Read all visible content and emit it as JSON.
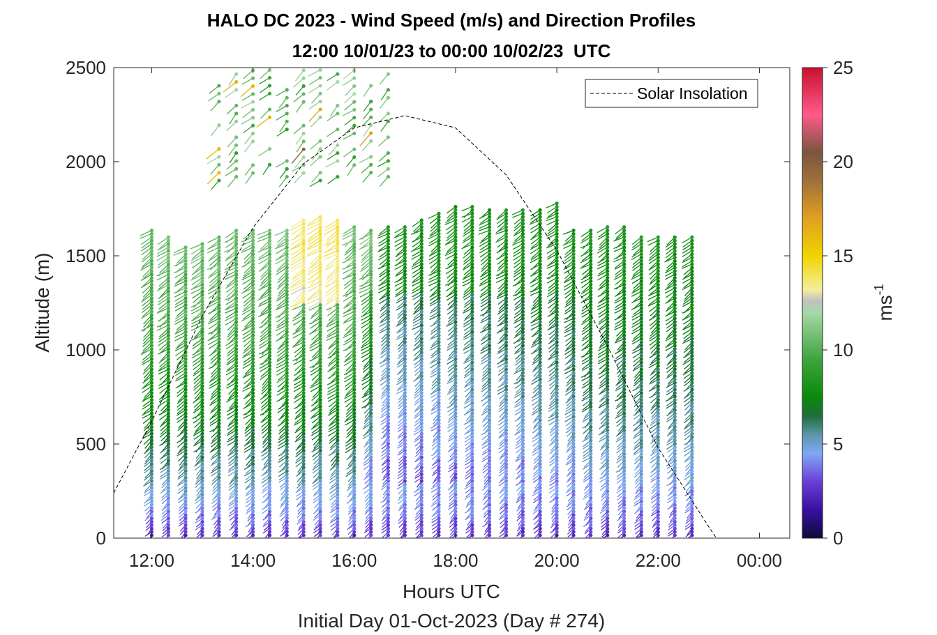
{
  "chart_data": {
    "type": "wind-barb-profile",
    "title": "HALO DC 2023 - Wind Speed (m/s) and Direction Profiles",
    "subtitle": "12:00 10/01/23 to 00:00 10/02/23  UTC",
    "xlabel": "Hours UTC",
    "xlabel2": "Initial Day 01-Oct-2023 (Day # 274)",
    "ylabel": "Altitude (m)",
    "xlim": [
      11.25,
      24.6
    ],
    "ylim": [
      0,
      2500
    ],
    "x_ticks": [
      {
        "value": 12,
        "label": "12:00"
      },
      {
        "value": 14,
        "label": "14:00"
      },
      {
        "value": 16,
        "label": "16:00"
      },
      {
        "value": 18,
        "label": "18:00"
      },
      {
        "value": 20,
        "label": "20:00"
      },
      {
        "value": 22,
        "label": "22:00"
      },
      {
        "value": 24,
        "label": "00:00"
      }
    ],
    "y_ticks": [
      0,
      500,
      1000,
      1500,
      2000,
      2500
    ],
    "colorbar": {
      "label": "ms",
      "label_exponent": "-1",
      "range": [
        0,
        25
      ],
      "ticks": [
        0,
        5,
        10,
        15,
        20,
        25
      ],
      "stops": [
        {
          "value": 0,
          "color": "#0b0b3a"
        },
        {
          "value": 1.5,
          "color": "#3a10a0"
        },
        {
          "value": 3,
          "color": "#6a3fd8"
        },
        {
          "value": 4.5,
          "color": "#7fa8f5"
        },
        {
          "value": 5.5,
          "color": "#5a96a8"
        },
        {
          "value": 6.5,
          "color": "#1e6e3c"
        },
        {
          "value": 7.5,
          "color": "#0a8a0a"
        },
        {
          "value": 9.5,
          "color": "#3fa33f"
        },
        {
          "value": 12,
          "color": "#a8d8a8"
        },
        {
          "value": 12.6,
          "color": "#c0c0c0"
        },
        {
          "value": 13.2,
          "color": "#f5ee9c"
        },
        {
          "value": 15,
          "color": "#f0d400"
        },
        {
          "value": 17,
          "color": "#e0a020"
        },
        {
          "value": 19,
          "color": "#a0703a"
        },
        {
          "value": 20.5,
          "color": "#7a5540"
        },
        {
          "value": 22.5,
          "color": "#ff5a8a"
        },
        {
          "value": 25,
          "color": "#c8102e"
        }
      ]
    },
    "legend": {
      "entries": [
        "Solar Insolation"
      ],
      "position": "top-right"
    },
    "solar_insolation": {
      "style": "dashed",
      "points": [
        [
          11.25,
          240
        ],
        [
          12.0,
          620
        ],
        [
          13.0,
          1180
        ],
        [
          14.0,
          1650
        ],
        [
          15.0,
          1990
        ],
        [
          16.0,
          2180
        ],
        [
          17.0,
          2245
        ],
        [
          18.0,
          2180
        ],
        [
          19.0,
          1930
        ],
        [
          20.0,
          1530
        ],
        [
          21.0,
          1020
        ],
        [
          22.0,
          480
        ],
        [
          23.0,
          60
        ],
        [
          23.15,
          0
        ],
        [
          24.6,
          0
        ]
      ]
    },
    "profiles": {
      "times": [
        12.0,
        12.33,
        12.67,
        13.0,
        13.33,
        13.67,
        14.0,
        14.33,
        14.67,
        15.0,
        15.33,
        15.67,
        16.0,
        16.33,
        16.67,
        17.0,
        17.33,
        17.67,
        18.0,
        18.33,
        18.67,
        19.0,
        19.33,
        19.67,
        20.0,
        20.33,
        20.67,
        21.0,
        21.33,
        21.67,
        22.0,
        22.33,
        22.67
      ],
      "tops_m": [
        1640,
        1610,
        1560,
        1580,
        1600,
        1640,
        1640,
        1640,
        1640,
        1690,
        1720,
        1690,
        1660,
        1640,
        1660,
        1670,
        1700,
        1730,
        1770,
        1770,
        1760,
        1760,
        1760,
        1750,
        1780,
        1650,
        1640,
        1660,
        1660,
        1600,
        1600,
        1610,
        1610
      ],
      "speed_profile_example_ms": {
        "time": 17.0,
        "altitudes_m": [
          50,
          250,
          500,
          1000,
          1500
        ],
        "speeds_ms": [
          2.0,
          3.5,
          5.5,
          6.8,
          7.5
        ]
      },
      "upper_layer": {
        "times": [
          13.33,
          13.67,
          14.0,
          14.33,
          14.67,
          15.0,
          15.33,
          15.67,
          16.0,
          16.33,
          16.67
        ],
        "range_m": [
          1900,
          2500
        ],
        "typical_speed_ms": 10.5
      }
    }
  }
}
